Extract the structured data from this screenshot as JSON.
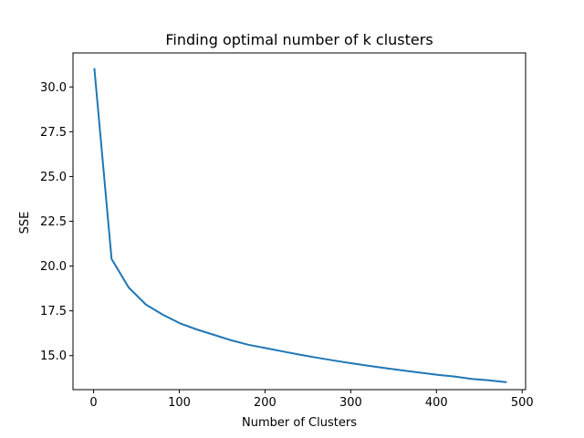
{
  "chart_data": {
    "type": "line",
    "title": "Finding optimal number of k clusters",
    "xlabel": "Number of Clusters",
    "ylabel": "SSE",
    "xlim": [
      -24,
      504
    ],
    "ylim": [
      13.1,
      31.9
    ],
    "xticks": [
      0,
      100,
      200,
      300,
      400,
      500
    ],
    "yticks": [
      15.0,
      17.5,
      20.0,
      22.5,
      25.0,
      27.5,
      30.0
    ],
    "xtick_labels": [
      "0",
      "100",
      "200",
      "300",
      "400",
      "500"
    ],
    "ytick_labels": [
      "15.0",
      "17.5",
      "20.0",
      "22.5",
      "25.0",
      "27.5",
      "30.0"
    ],
    "grid": false,
    "legend": "none",
    "series": [
      {
        "color": "#1f77b4",
        "x": [
          1,
          21,
          41,
          61,
          81,
          101,
          121,
          141,
          161,
          181,
          201,
          221,
          241,
          261,
          281,
          301,
          321,
          341,
          361,
          381,
          401,
          421,
          441,
          461,
          481
        ],
        "y": [
          31.0,
          20.4,
          18.8,
          17.85,
          17.28,
          16.8,
          16.45,
          16.15,
          15.85,
          15.6,
          15.42,
          15.23,
          15.05,
          14.88,
          14.72,
          14.57,
          14.43,
          14.3,
          14.17,
          14.05,
          13.93,
          13.83,
          13.7,
          13.62,
          13.52
        ]
      }
    ]
  }
}
